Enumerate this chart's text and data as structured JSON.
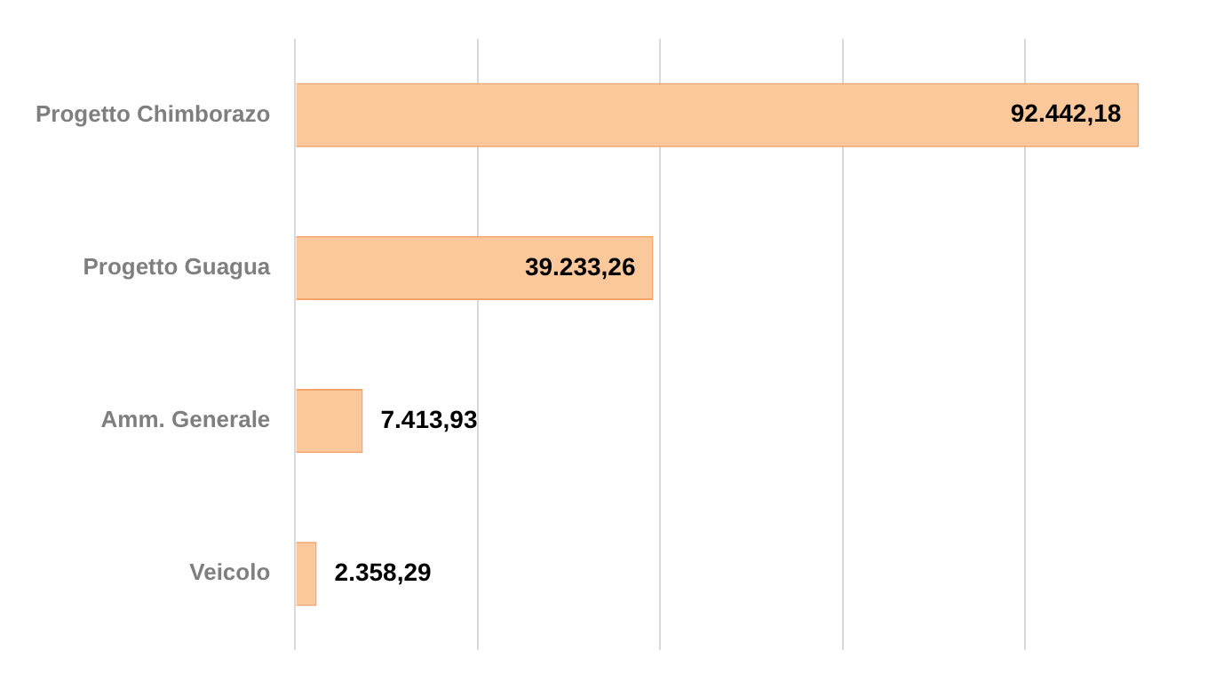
{
  "chart_data": {
    "type": "bar",
    "orientation": "horizontal",
    "categories": [
      "Progetto Chimborazo",
      "Progetto Guagua",
      "Amm. Generale",
      "Veicolo"
    ],
    "values": [
      92442.18,
      39233.26,
      7413.93,
      2358.29
    ],
    "value_labels": [
      "92.442,18",
      "39.233,26",
      "7.413,93",
      "2.358,29"
    ],
    "color": "#fbc89b",
    "xticks": [
      {
        "value": 0,
        "label": null
      },
      {
        "value": 20000,
        "label": null
      },
      {
        "value": 40000,
        "label": null
      },
      {
        "value": 60000,
        "label": null
      },
      {
        "value": 80000,
        "label": null
      }
    ],
    "grid": "x",
    "tick_labels": "y",
    "legend": false
  }
}
